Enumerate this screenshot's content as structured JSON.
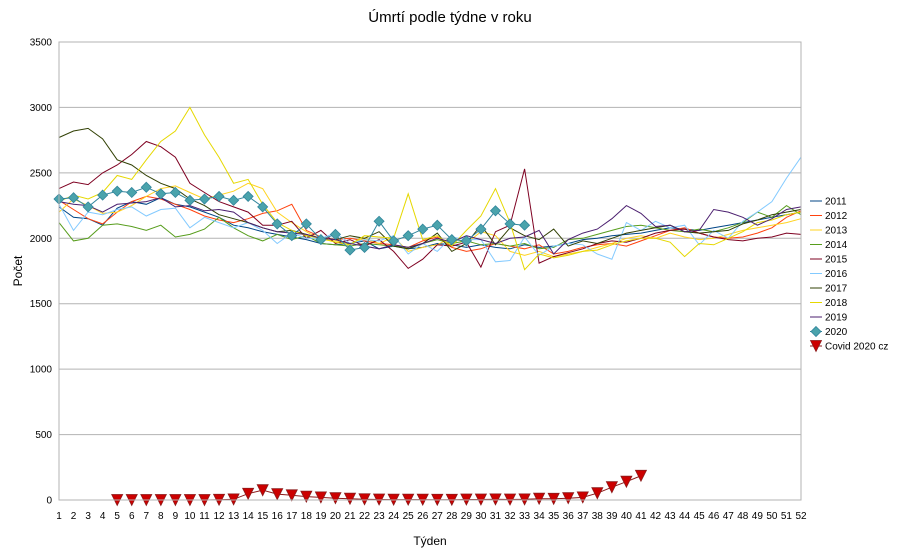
{
  "chart_data": {
    "type": "line",
    "title": "Úmrtí podle týdne v roku",
    "xlabel": "Týden",
    "ylabel": "Počet",
    "xlim": [
      1,
      52
    ],
    "ylim": [
      0,
      3500
    ],
    "yticks": [
      0,
      500,
      1000,
      1500,
      2000,
      2500,
      3000,
      3500
    ],
    "grid": true,
    "legend_position": "right",
    "x": [
      1,
      2,
      3,
      4,
      5,
      6,
      7,
      8,
      9,
      10,
      11,
      12,
      13,
      14,
      15,
      16,
      17,
      18,
      19,
      20,
      21,
      22,
      23,
      24,
      25,
      26,
      27,
      28,
      29,
      30,
      31,
      32,
      33,
      34,
      35,
      36,
      37,
      38,
      39,
      40,
      41,
      42,
      43,
      44,
      45,
      46,
      47,
      48,
      49,
      50,
      51,
      52
    ],
    "series": [
      {
        "name": "2011",
        "color": "#004586",
        "marker": "none",
        "values": [
          2240,
          2160,
          2150,
          2100,
          2230,
          2280,
          2260,
          2310,
          2260,
          2240,
          2200,
          2160,
          2100,
          2080,
          2050,
          2030,
          2010,
          1990,
          1960,
          1950,
          1960,
          1980,
          1920,
          1940,
          1920,
          1930,
          1960,
          1950,
          1930,
          1950,
          1930,
          1920,
          1950,
          1930,
          1940,
          1960,
          1990,
          2000,
          2020,
          2030,
          2040,
          2060,
          2080,
          2070,
          2060,
          2080,
          2100,
          2120,
          2140,
          2160,
          2180,
          2200
        ]
      },
      {
        "name": "2012",
        "color": "#ff420e",
        "marker": "none",
        "values": [
          2290,
          2220,
          2150,
          2110,
          2200,
          2280,
          2320,
          2300,
          2260,
          2220,
          2170,
          2140,
          2120,
          2150,
          2190,
          2210,
          2260,
          2060,
          2010,
          1990,
          2000,
          1980,
          1960,
          1950,
          1930,
          1980,
          2010,
          1930,
          1900,
          1920,
          1960,
          1940,
          1920,
          1950,
          1880,
          1900,
          1930,
          1950,
          1960,
          1940,
          1980,
          2020,
          2060,
          2080,
          2040,
          2010,
          2000,
          2010,
          2040,
          2080,
          2160,
          2210
        ]
      },
      {
        "name": "2013",
        "color": "#ffd320",
        "marker": "none",
        "values": [
          2200,
          2300,
          2250,
          2190,
          2200,
          2250,
          2320,
          2380,
          2400,
          2350,
          2300,
          2330,
          2360,
          2420,
          2380,
          2200,
          2120,
          2050,
          1990,
          1980,
          1960,
          2000,
          1960,
          2010,
          1900,
          1930,
          1950,
          2010,
          1960,
          2050,
          2020,
          1900,
          1870,
          1900,
          1860,
          1880,
          1900,
          1930,
          1960,
          2000,
          2020,
          2000,
          2040,
          2010,
          1990,
          2000,
          2030,
          2060,
          2080,
          2100,
          2120,
          2150
        ]
      },
      {
        "name": "2014",
        "color": "#579d1c",
        "marker": "none",
        "values": [
          2120,
          1980,
          2000,
          2100,
          2110,
          2090,
          2060,
          2100,
          2010,
          2030,
          2070,
          2160,
          2080,
          2020,
          1980,
          2030,
          1990,
          2020,
          1960,
          1950,
          1940,
          1960,
          1950,
          1940,
          1930,
          1960,
          1990,
          1960,
          1980,
          1950,
          1960,
          1940,
          1960,
          1920,
          1930,
          1990,
          2000,
          2030,
          2060,
          2090,
          2100,
          2080,
          2060,
          2050,
          2070,
          2050,
          2080,
          2120,
          2200,
          2160,
          2250,
          2180
        ]
      },
      {
        "name": "2015",
        "color": "#7e0021",
        "marker": "none",
        "values": [
          2380,
          2430,
          2410,
          2500,
          2560,
          2640,
          2740,
          2700,
          2620,
          2420,
          2350,
          2280,
          2240,
          2200,
          2100,
          2100,
          2130,
          2000,
          2060,
          1960,
          1990,
          1940,
          1990,
          1900,
          1770,
          1840,
          1950,
          1940,
          1970,
          1780,
          2050,
          2100,
          2530,
          1810,
          1860,
          1890,
          1920,
          1960,
          1980,
          1970,
          2000,
          2040,
          2060,
          2070,
          2040,
          2010,
          1990,
          1980,
          2000,
          2010,
          2040,
          2030
        ]
      },
      {
        "name": "2016",
        "color": "#83caff",
        "marker": "none",
        "values": [
          2260,
          2060,
          2200,
          2180,
          2220,
          2240,
          2170,
          2220,
          2230,
          2080,
          2160,
          2120,
          2080,
          2120,
          2060,
          1960,
          2040,
          2000,
          2000,
          2040,
          1960,
          1990,
          1980,
          2020,
          1880,
          1960,
          1900,
          2010,
          1990,
          1990,
          1820,
          1830,
          2010,
          1870,
          1940,
          1960,
          1950,
          1880,
          1840,
          2120,
          2060,
          2130,
          2080,
          2100,
          1950,
          2060,
          2000,
          2130,
          2200,
          2280,
          2460,
          2620
        ]
      },
      {
        "name": "2017",
        "color": "#314004",
        "marker": "none",
        "values": [
          2770,
          2820,
          2840,
          2760,
          2600,
          2560,
          2480,
          2420,
          2380,
          2300,
          2250,
          2180,
          2150,
          2120,
          2080,
          2050,
          2060,
          2030,
          2000,
          1990,
          2020,
          2000,
          2050,
          1940,
          1920,
          1960,
          2040,
          1900,
          1960,
          2100,
          1950,
          2080,
          2020,
          1990,
          2070,
          1940,
          1980,
          1960,
          2000,
          2040,
          2060,
          2080,
          2100,
          2050,
          2040,
          2050,
          2060,
          2110,
          2140,
          2180,
          2200,
          2220
        ]
      },
      {
        "name": "2018",
        "color": "#e6d800",
        "marker": "none",
        "values": [
          2280,
          2330,
          2300,
          2350,
          2480,
          2450,
          2600,
          2740,
          2820,
          3000,
          2790,
          2620,
          2420,
          2450,
          2260,
          2120,
          2060,
          2020,
          2000,
          1970,
          1950,
          2020,
          2010,
          2000,
          2340,
          1990,
          2020,
          1940,
          2060,
          2170,
          2380,
          2120,
          1760,
          1880,
          1850,
          1870,
          1900,
          1910,
          1950,
          1980,
          2000,
          2000,
          1970,
          1860,
          1960,
          1950,
          2000,
          2050,
          2120,
          2140,
          2180,
          2200
        ]
      },
      {
        "name": "2019",
        "color": "#4b1f6f",
        "marker": "none",
        "values": [
          2280,
          2260,
          2250,
          2200,
          2260,
          2270,
          2280,
          2310,
          2240,
          2250,
          2210,
          2220,
          2200,
          2120,
          2080,
          2050,
          2040,
          2030,
          2000,
          1990,
          1960,
          1940,
          1920,
          1950,
          1930,
          1960,
          2000,
          1970,
          2020,
          1990,
          1960,
          2000,
          2010,
          2060,
          1880,
          1990,
          2040,
          2070,
          2150,
          2250,
          2190,
          2090,
          2100,
          2050,
          2060,
          2220,
          2200,
          2160,
          2100,
          2150,
          2220,
          2240
        ]
      },
      {
        "name": "2020",
        "color": "#31859c",
        "marker": "diamond",
        "marker_color": "#4aa3ac",
        "values": [
          2300,
          2310,
          2240,
          2330,
          2360,
          2350,
          2390,
          2340,
          2350,
          2290,
          2300,
          2320,
          2290,
          2320,
          2240,
          2110,
          2020,
          2110,
          1990,
          2030,
          1910,
          1930,
          2130,
          1980,
          2020,
          2070,
          2100,
          1990,
          1980,
          2070,
          2210,
          2110,
          2100,
          null,
          null,
          null,
          null,
          null,
          null,
          null,
          null,
          null,
          null,
          null,
          null,
          null,
          null,
          null,
          null,
          null,
          null,
          null
        ]
      },
      {
        "name": "Covid 2020 cz",
        "color": "#8b1a1a",
        "marker": "triangle-down",
        "marker_color": "#cc0000",
        "values": [
          null,
          null,
          null,
          null,
          0,
          0,
          0,
          0,
          0,
          0,
          0,
          2,
          5,
          48,
          75,
          45,
          36,
          26,
          20,
          14,
          10,
          6,
          4,
          3,
          3,
          3,
          2,
          2,
          4,
          4,
          5,
          4,
          5,
          10,
          9,
          14,
          20,
          52,
          98,
          140,
          185,
          null,
          null,
          null,
          null,
          null,
          null,
          null,
          null,
          null,
          null,
          null
        ]
      }
    ]
  }
}
